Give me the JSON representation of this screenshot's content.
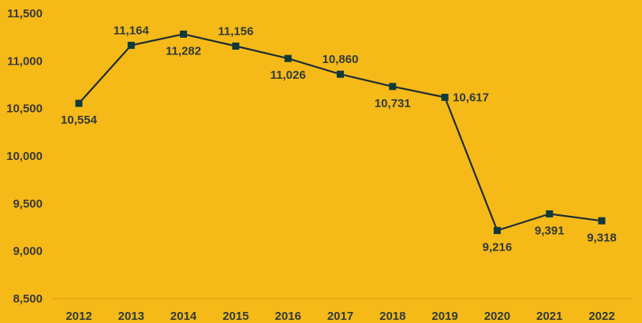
{
  "chart_data": {
    "type": "line",
    "title": "",
    "xlabel": "",
    "ylabel": "",
    "categories": [
      "2012",
      "2013",
      "2014",
      "2015",
      "2016",
      "2017",
      "2018",
      "2019",
      "2020",
      "2021",
      "2022"
    ],
    "series": [
      {
        "values": [
          10554,
          11164,
          11282,
          11156,
          11026,
          10860,
          10731,
          10617,
          9216,
          9391,
          9318
        ],
        "labels": [
          "10,554",
          "11,164",
          "11,282",
          "11,156",
          "11,026",
          "10,860",
          "10,731",
          "10,617",
          "9,216",
          "9,391",
          "9,318"
        ],
        "label_position": [
          "below",
          "above",
          "below",
          "above",
          "below",
          "above",
          "below",
          "right",
          "below",
          "below",
          "below"
        ]
      }
    ],
    "ylim": [
      8500,
      11500
    ],
    "yticks": [
      8500,
      9000,
      9500,
      10000,
      10500,
      11000,
      11500
    ],
    "ytick_labels": [
      "8,500",
      "9,000",
      "9,500",
      "10,000",
      "10,500",
      "11,000",
      "11,500"
    ],
    "grid": false,
    "legend": "none",
    "colors": {
      "background": "#F5B918",
      "line": "#1F2D36",
      "marker": "#0F3A3C",
      "text": "#2F3A3A"
    }
  }
}
